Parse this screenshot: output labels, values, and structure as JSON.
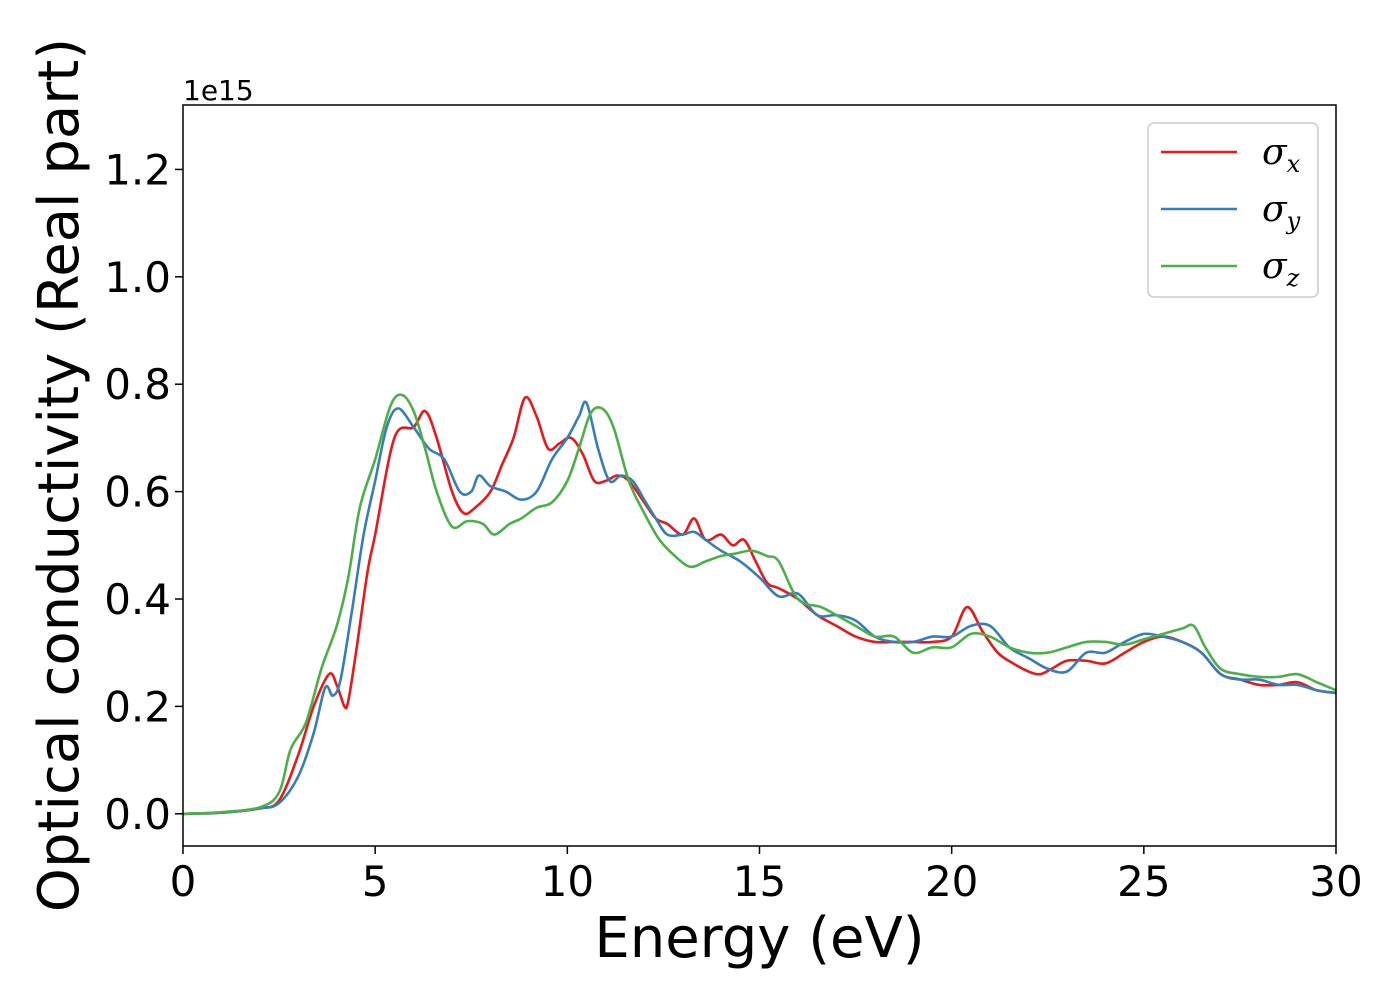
{
  "chart_data": {
    "type": "line",
    "title": "",
    "xlabel": "Energy (eV)",
    "ylabel": "Optical conductivity (Real part)",
    "y_offset_label": "1e15",
    "xlim": [
      0,
      30
    ],
    "ylim": [
      -0.06,
      1.32
    ],
    "xticks": [
      0,
      5,
      10,
      15,
      20,
      25,
      30
    ],
    "yticks": [
      0.0,
      0.2,
      0.4,
      0.6,
      0.8,
      1.0,
      1.2
    ],
    "grid": false,
    "legend_position": "top-right",
    "series": [
      {
        "name": "σx",
        "legend_symbol": "σ",
        "legend_subscript": "x",
        "color": "#e41a1c",
        "x": [
          0,
          1,
          2,
          2.5,
          3.0,
          3.4,
          3.8,
          4.0,
          4.2,
          4.3,
          4.5,
          4.8,
          5.0,
          5.5,
          6.0,
          6.3,
          6.6,
          7.0,
          7.3,
          7.6,
          8.0,
          8.3,
          8.6,
          8.9,
          9.2,
          9.5,
          9.8,
          10.1,
          10.4,
          10.7,
          11.0,
          11.3,
          11.6,
          12.0,
          12.3,
          12.6,
          13.0,
          13.3,
          13.6,
          14.0,
          14.3,
          14.6,
          14.9,
          15.2,
          15.5,
          16.0,
          16.5,
          17.0,
          17.5,
          18.0,
          18.5,
          19.0,
          19.5,
          20.0,
          20.4,
          20.8,
          21.2,
          21.6,
          22.0,
          22.3,
          22.6,
          23.0,
          23.5,
          24.0,
          24.5,
          25.0,
          25.5,
          26.0,
          26.5,
          27.0,
          27.5,
          28.0,
          28.5,
          29.0,
          29.5,
          30.0
        ],
        "values": [
          0.0,
          0.002,
          0.01,
          0.025,
          0.11,
          0.2,
          0.26,
          0.24,
          0.2,
          0.21,
          0.3,
          0.45,
          0.52,
          0.7,
          0.72,
          0.75,
          0.7,
          0.6,
          0.56,
          0.57,
          0.6,
          0.65,
          0.7,
          0.775,
          0.74,
          0.68,
          0.69,
          0.7,
          0.67,
          0.62,
          0.62,
          0.63,
          0.62,
          0.58,
          0.55,
          0.54,
          0.52,
          0.55,
          0.51,
          0.52,
          0.5,
          0.51,
          0.47,
          0.43,
          0.42,
          0.4,
          0.37,
          0.35,
          0.33,
          0.32,
          0.32,
          0.32,
          0.32,
          0.33,
          0.385,
          0.34,
          0.3,
          0.28,
          0.265,
          0.26,
          0.27,
          0.285,
          0.285,
          0.28,
          0.3,
          0.32,
          0.33,
          0.32,
          0.3,
          0.26,
          0.25,
          0.24,
          0.24,
          0.245,
          0.23,
          0.225
        ]
      },
      {
        "name": "σy",
        "legend_symbol": "σ",
        "legend_subscript": "y",
        "color": "#377eb8",
        "x": [
          0,
          1,
          2,
          2.5,
          3.0,
          3.4,
          3.7,
          3.9,
          4.1,
          4.4,
          4.7,
          5.0,
          5.3,
          5.6,
          6.0,
          6.4,
          6.8,
          7.2,
          7.5,
          7.7,
          8.0,
          8.4,
          8.8,
          9.2,
          9.6,
          10.0,
          10.3,
          10.5,
          10.8,
          11.1,
          11.4,
          11.7,
          12.0,
          12.3,
          12.6,
          13.0,
          13.3,
          13.6,
          14.0,
          14.5,
          15.0,
          15.5,
          16.0,
          16.5,
          17.0,
          17.5,
          18.0,
          18.5,
          19.0,
          19.5,
          20.0,
          20.5,
          21.0,
          21.5,
          22.0,
          22.5,
          23.0,
          23.5,
          24.0,
          24.5,
          25.0,
          25.5,
          26.0,
          26.5,
          27.0,
          27.5,
          28.0,
          28.5,
          29.0,
          29.5,
          30.0
        ],
        "values": [
          0.0,
          0.002,
          0.01,
          0.02,
          0.07,
          0.15,
          0.235,
          0.22,
          0.25,
          0.38,
          0.52,
          0.62,
          0.72,
          0.755,
          0.72,
          0.68,
          0.66,
          0.6,
          0.6,
          0.63,
          0.61,
          0.6,
          0.585,
          0.6,
          0.66,
          0.7,
          0.74,
          0.765,
          0.68,
          0.62,
          0.63,
          0.62,
          0.585,
          0.55,
          0.52,
          0.52,
          0.525,
          0.51,
          0.49,
          0.47,
          0.44,
          0.405,
          0.41,
          0.37,
          0.37,
          0.36,
          0.33,
          0.32,
          0.32,
          0.33,
          0.33,
          0.35,
          0.35,
          0.31,
          0.29,
          0.27,
          0.265,
          0.3,
          0.3,
          0.32,
          0.335,
          0.33,
          0.32,
          0.3,
          0.26,
          0.25,
          0.25,
          0.24,
          0.24,
          0.23,
          0.225
        ]
      },
      {
        "name": "σz",
        "legend_symbol": "σ",
        "legend_subscript": "z",
        "color": "#4daf4a",
        "x": [
          0,
          1,
          2,
          2.5,
          2.8,
          3.2,
          3.6,
          4.0,
          4.3,
          4.6,
          5.0,
          5.4,
          5.7,
          6.0,
          6.3,
          6.6,
          7.0,
          7.4,
          7.8,
          8.1,
          8.5,
          8.8,
          9.2,
          9.6,
          10.0,
          10.3,
          10.6,
          10.9,
          11.2,
          11.6,
          12.0,
          12.4,
          12.8,
          13.2,
          13.6,
          14.0,
          14.4,
          14.8,
          15.2,
          15.5,
          16.0,
          16.6,
          17.0,
          17.5,
          18.0,
          18.5,
          19.0,
          19.5,
          20.0,
          20.5,
          21.0,
          21.5,
          22.0,
          22.5,
          23.0,
          23.5,
          24.0,
          24.5,
          25.0,
          25.5,
          26.0,
          26.3,
          26.6,
          27.0,
          27.5,
          28.0,
          28.5,
          29.0,
          29.5,
          30.0
        ],
        "values": [
          0.0,
          0.003,
          0.012,
          0.04,
          0.12,
          0.17,
          0.27,
          0.35,
          0.44,
          0.57,
          0.66,
          0.76,
          0.78,
          0.75,
          0.68,
          0.6,
          0.535,
          0.545,
          0.54,
          0.52,
          0.54,
          0.55,
          0.57,
          0.58,
          0.62,
          0.68,
          0.745,
          0.755,
          0.72,
          0.62,
          0.56,
          0.51,
          0.48,
          0.46,
          0.47,
          0.48,
          0.485,
          0.49,
          0.48,
          0.47,
          0.4,
          0.385,
          0.37,
          0.35,
          0.33,
          0.33,
          0.3,
          0.31,
          0.31,
          0.335,
          0.33,
          0.31,
          0.3,
          0.3,
          0.31,
          0.32,
          0.32,
          0.315,
          0.325,
          0.335,
          0.345,
          0.35,
          0.31,
          0.27,
          0.26,
          0.255,
          0.255,
          0.26,
          0.245,
          0.23
        ]
      }
    ]
  }
}
